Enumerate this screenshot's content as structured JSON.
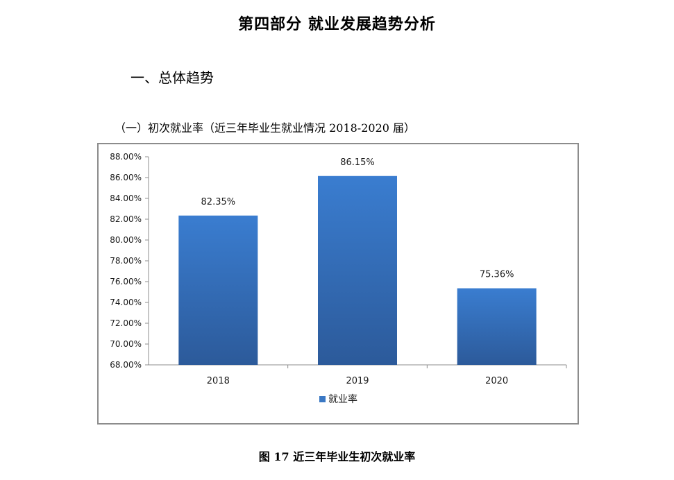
{
  "document": {
    "title": "第四部分 就业发展趋势分析",
    "section_heading": "一、总体趋势",
    "subsection_heading": "（一）初次就业率（近三年毕业生就业情况 2018-2020 届）",
    "figure_caption": "图 17 近三年毕业生初次就业率"
  },
  "chart_data": {
    "type": "bar",
    "categories": [
      "2018",
      "2019",
      "2020"
    ],
    "series": [
      {
        "name": "就业率",
        "values": [
          82.35,
          86.15,
          75.36
        ],
        "color": "#3a78c4"
      }
    ],
    "data_labels": [
      "82.35%",
      "86.15%",
      "75.36%"
    ],
    "y_ticks": [
      "68.00%",
      "70.00%",
      "72.00%",
      "74.00%",
      "76.00%",
      "78.00%",
      "80.00%",
      "82.00%",
      "84.00%",
      "86.00%",
      "88.00%"
    ],
    "ylim": [
      68,
      88
    ],
    "grid": false,
    "legend_position": "bottom",
    "title": "",
    "xlabel": "",
    "ylabel": ""
  }
}
